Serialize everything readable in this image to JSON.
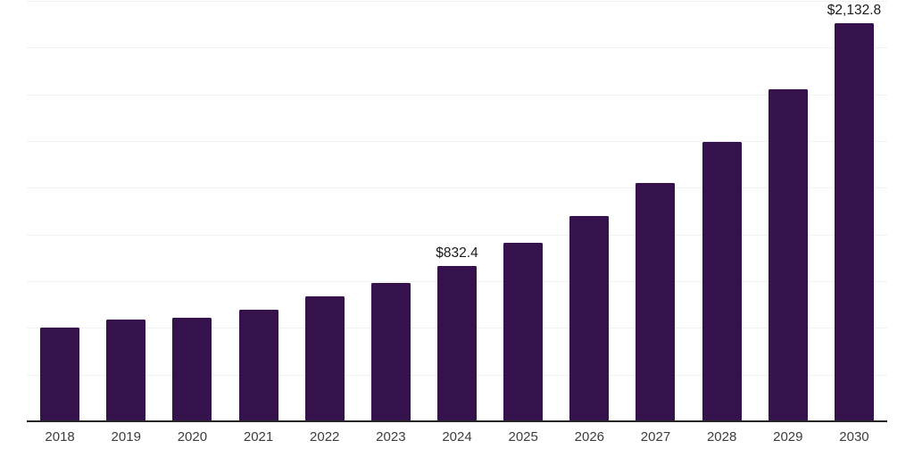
{
  "chart_data": {
    "type": "bar",
    "title": "",
    "xlabel": "",
    "ylabel": "",
    "categories": [
      "2018",
      "2019",
      "2020",
      "2021",
      "2022",
      "2023",
      "2024",
      "2025",
      "2026",
      "2027",
      "2028",
      "2029",
      "2030"
    ],
    "values": [
      502,
      543,
      556,
      598,
      668,
      741,
      832.4,
      954,
      1098,
      1276,
      1496,
      1775,
      2132.8
    ],
    "point_labels": [
      "",
      "",
      "",
      "",
      "",
      "",
      "$832.4",
      "",
      "",
      "",
      "",
      "",
      "$2,132.8"
    ],
    "ylim": [
      0,
      2250
    ],
    "gridline_interval": 250,
    "grid": "horizontal-only",
    "legend_position": "none",
    "bar_color": "#36124D",
    "axis_line_color": "#262626",
    "gridline_color": "#f2f2f2",
    "value_label_color": "#1a1a1a",
    "tick_label_color": "#3c3c3c"
  }
}
